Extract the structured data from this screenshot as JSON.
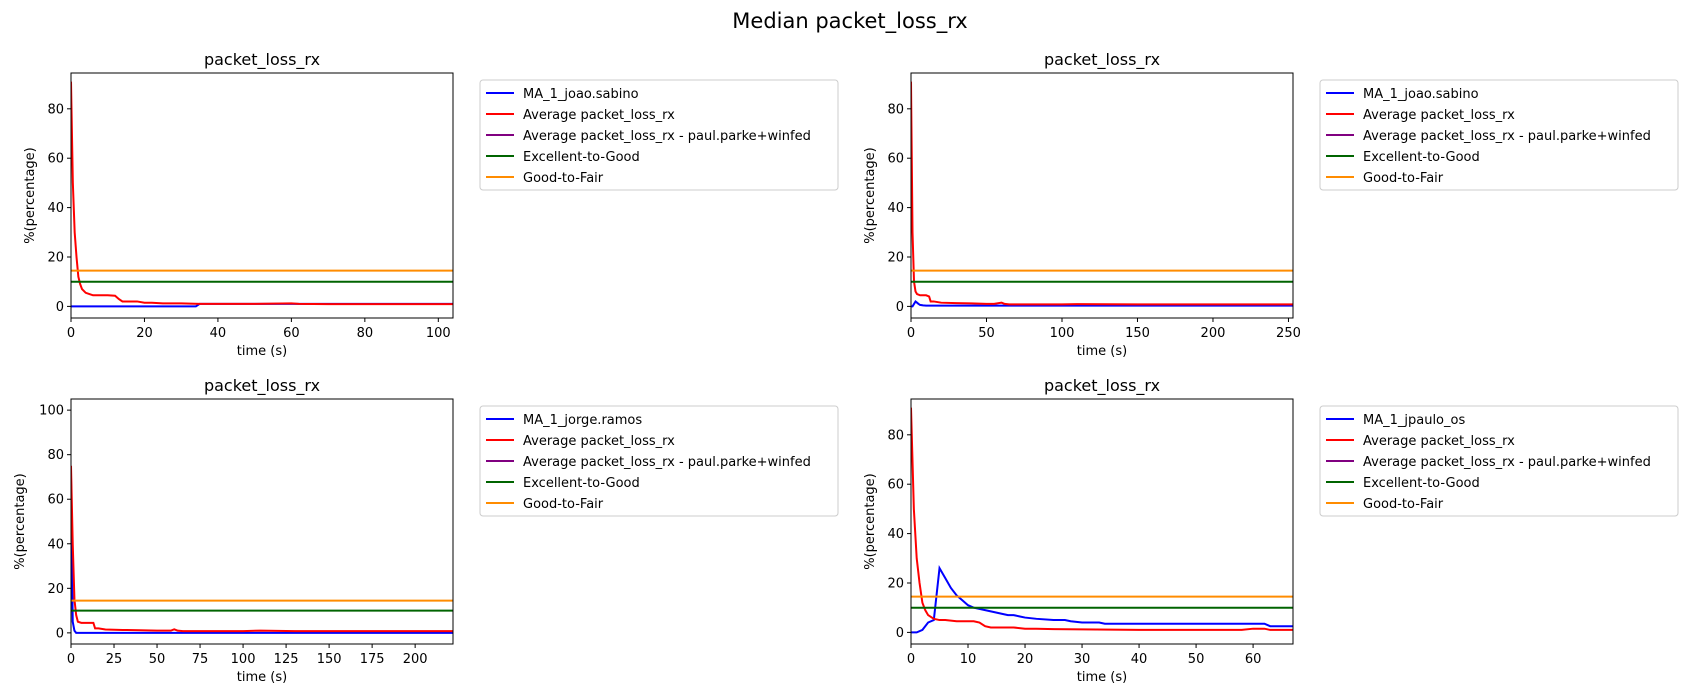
{
  "figure": {
    "suptitle": "Median packet_loss_rx"
  },
  "chart_data": [
    {
      "type": "line",
      "title": "packet_loss_rx",
      "xlabel": "time (s)",
      "ylabel": "%(percentage)",
      "xlim": [
        0,
        104
      ],
      "ylim": [
        -4.7,
        94.5
      ],
      "xticks": [
        0,
        20,
        40,
        60,
        80,
        100
      ],
      "yticks": [
        0,
        20,
        40,
        60,
        80
      ],
      "grid": false,
      "legend_position": "outside-right",
      "series": [
        {
          "name": "MA_1_joao.sabino",
          "color": "#0000ff",
          "x": [
            0,
            10,
            20,
            30,
            34,
            35,
            36,
            50,
            70,
            90,
            104
          ],
          "y": [
            0,
            0,
            0,
            0,
            0,
            1,
            1,
            1,
            1,
            1,
            1
          ]
        },
        {
          "name": "Average packet_loss_rx",
          "color": "#ff0000",
          "x": [
            0,
            0.5,
            1,
            1.5,
            2,
            2.5,
            3,
            4,
            5,
            6,
            8,
            10,
            12,
            13,
            14,
            16,
            18,
            20,
            22,
            25,
            30,
            35,
            40,
            50,
            60,
            62,
            70,
            80,
            90,
            104
          ],
          "y": [
            91,
            50,
            30,
            20,
            12,
            9,
            7,
            5.5,
            5,
            4.5,
            4.5,
            4.5,
            4.3,
            3,
            2,
            2,
            2,
            1.5,
            1.5,
            1.2,
            1.2,
            1,
            1,
            1,
            1.2,
            1,
            0.9,
            0.9,
            0.9,
            0.9
          ]
        },
        {
          "name": "Average packet_loss_rx - paul.parke+winfed",
          "color": "#800080",
          "x": [],
          "y": []
        },
        {
          "name": "Excellent-to-Good",
          "color": "#006400",
          "x": [
            0,
            104
          ],
          "y": [
            10,
            10
          ]
        },
        {
          "name": "Good-to-Fair",
          "color": "#ff8c00",
          "x": [
            0,
            104
          ],
          "y": [
            14.5,
            14.5
          ]
        }
      ]
    },
    {
      "type": "line",
      "title": "packet_loss_rx",
      "xlabel": "time (s)",
      "ylabel": "%(percentage)",
      "xlim": [
        0,
        253
      ],
      "ylim": [
        -4.7,
        94.5
      ],
      "xticks": [
        0,
        50,
        100,
        150,
        200,
        250
      ],
      "yticks": [
        0,
        20,
        40,
        60,
        80
      ],
      "grid": false,
      "legend_position": "outside-right",
      "series": [
        {
          "name": "MA_1_joao.sabino",
          "color": "#0000ff",
          "x": [
            0,
            1,
            2,
            3,
            4,
            5,
            6,
            8,
            10,
            20,
            100,
            253
          ],
          "y": [
            0,
            0,
            1,
            2,
            1.5,
            1,
            0.6,
            0.4,
            0.3,
            0.3,
            0.3,
            0.3
          ]
        },
        {
          "name": "Average packet_loss_rx",
          "color": "#ff0000",
          "x": [
            0,
            1,
            2,
            3,
            4,
            6,
            10,
            12,
            13,
            15,
            20,
            30,
            40,
            50,
            55,
            60,
            62,
            65,
            80,
            100,
            110,
            150,
            200,
            253
          ],
          "y": [
            91,
            30,
            10,
            6,
            5,
            4.5,
            4.5,
            4,
            2,
            2,
            1.5,
            1.3,
            1.2,
            1,
            1,
            1.5,
            1,
            0.8,
            0.8,
            0.8,
            0.9,
            0.8,
            0.8,
            0.8
          ]
        },
        {
          "name": "Average packet_loss_rx - paul.parke+winfed",
          "color": "#800080",
          "x": [],
          "y": []
        },
        {
          "name": "Excellent-to-Good",
          "color": "#006400",
          "x": [
            0,
            253
          ],
          "y": [
            10,
            10
          ]
        },
        {
          "name": "Good-to-Fair",
          "color": "#ff8c00",
          "x": [
            0,
            253
          ],
          "y": [
            14.5,
            14.5
          ]
        }
      ]
    },
    {
      "type": "line",
      "title": "packet_loss_rx",
      "xlabel": "time (s)",
      "ylabel": "%(percentage)",
      "xlim": [
        0,
        222
      ],
      "ylim": [
        -5,
        105
      ],
      "xticks": [
        0,
        25,
        50,
        75,
        100,
        125,
        150,
        175,
        200
      ],
      "yticks": [
        0,
        20,
        40,
        60,
        80,
        100
      ],
      "grid": false,
      "legend_position": "outside-right",
      "series": [
        {
          "name": "MA_1_jorge.ramos",
          "color": "#0000ff",
          "x": [
            0,
            1,
            2,
            3,
            5,
            10,
            50,
            100,
            150,
            222
          ],
          "y": [
            70,
            5,
            1,
            0,
            0,
            0,
            0,
            0,
            0,
            0
          ]
        },
        {
          "name": "Average packet_loss_rx",
          "color": "#ff0000",
          "x": [
            0,
            1,
            2,
            3,
            4,
            6,
            8,
            10,
            13,
            14,
            16,
            20,
            30,
            40,
            50,
            58,
            60,
            62,
            65,
            80,
            100,
            110,
            130,
            150,
            200,
            222
          ],
          "y": [
            75,
            40,
            15,
            8,
            5,
            4.5,
            4.5,
            4.5,
            4.5,
            2,
            2,
            1.5,
            1.3,
            1.2,
            1,
            1,
            1.6,
            1,
            0.8,
            0.8,
            0.8,
            1,
            0.8,
            0.8,
            0.8,
            0.8
          ]
        },
        {
          "name": "Average packet_loss_rx - paul.parke+winfed",
          "color": "#800080",
          "x": [],
          "y": []
        },
        {
          "name": "Excellent-to-Good",
          "color": "#006400",
          "x": [
            0,
            222
          ],
          "y": [
            10,
            10
          ]
        },
        {
          "name": "Good-to-Fair",
          "color": "#ff8c00",
          "x": [
            0,
            222
          ],
          "y": [
            14.5,
            14.5
          ]
        }
      ]
    },
    {
      "type": "line",
      "title": "packet_loss_rx",
      "xlabel": "time (s)",
      "ylabel": "%(percentage)",
      "xlim": [
        0,
        67
      ],
      "ylim": [
        -4.7,
        94.5
      ],
      "xticks": [
        0,
        10,
        20,
        30,
        40,
        50,
        60
      ],
      "yticks": [
        0,
        20,
        40,
        60,
        80
      ],
      "grid": false,
      "legend_position": "outside-right",
      "series": [
        {
          "name": "MA_1_jpaulo_os",
          "color": "#0000ff",
          "x": [
            0,
            1,
            2,
            3,
            4,
            5,
            6,
            7,
            8,
            9,
            10,
            11,
            12,
            13,
            14,
            15,
            16,
            17,
            18,
            19,
            20,
            22,
            25,
            27,
            28,
            30,
            33,
            34,
            36,
            40,
            50,
            60,
            62,
            63,
            67
          ],
          "y": [
            0,
            0,
            1,
            4,
            5,
            26,
            22,
            18,
            15,
            13,
            11,
            10,
            9.5,
            9,
            8.5,
            8,
            7.5,
            7,
            7,
            6.5,
            6,
            5.5,
            5,
            5,
            4.5,
            4,
            4,
            3.5,
            3.5,
            3.5,
            3.5,
            3.5,
            3.5,
            2.5,
            2.5
          ]
        },
        {
          "name": "Average packet_loss_rx",
          "color": "#ff0000",
          "x": [
            0,
            0.5,
            1,
            1.5,
            2,
            2.5,
            3,
            4,
            5,
            6,
            8,
            10,
            11,
            12,
            13,
            14,
            16,
            18,
            20,
            22,
            25,
            30,
            40,
            50,
            55,
            58,
            60,
            62,
            63,
            67
          ],
          "y": [
            91,
            50,
            30,
            20,
            12,
            9,
            7,
            5.5,
            5,
            5,
            4.5,
            4.5,
            4.5,
            4,
            2.5,
            2,
            2,
            2,
            1.5,
            1.5,
            1.3,
            1.2,
            1,
            1,
            1,
            1,
            1.5,
            1.5,
            1,
            1
          ]
        },
        {
          "name": "Average packet_loss_rx - paul.parke+winfed",
          "color": "#800080",
          "x": [],
          "y": []
        },
        {
          "name": "Excellent-to-Good",
          "color": "#006400",
          "x": [
            0,
            67
          ],
          "y": [
            10,
            10
          ]
        },
        {
          "name": "Good-to-Fair",
          "color": "#ff8c00",
          "x": [
            0,
            67
          ],
          "y": [
            14.5,
            14.5
          ]
        }
      ]
    }
  ]
}
